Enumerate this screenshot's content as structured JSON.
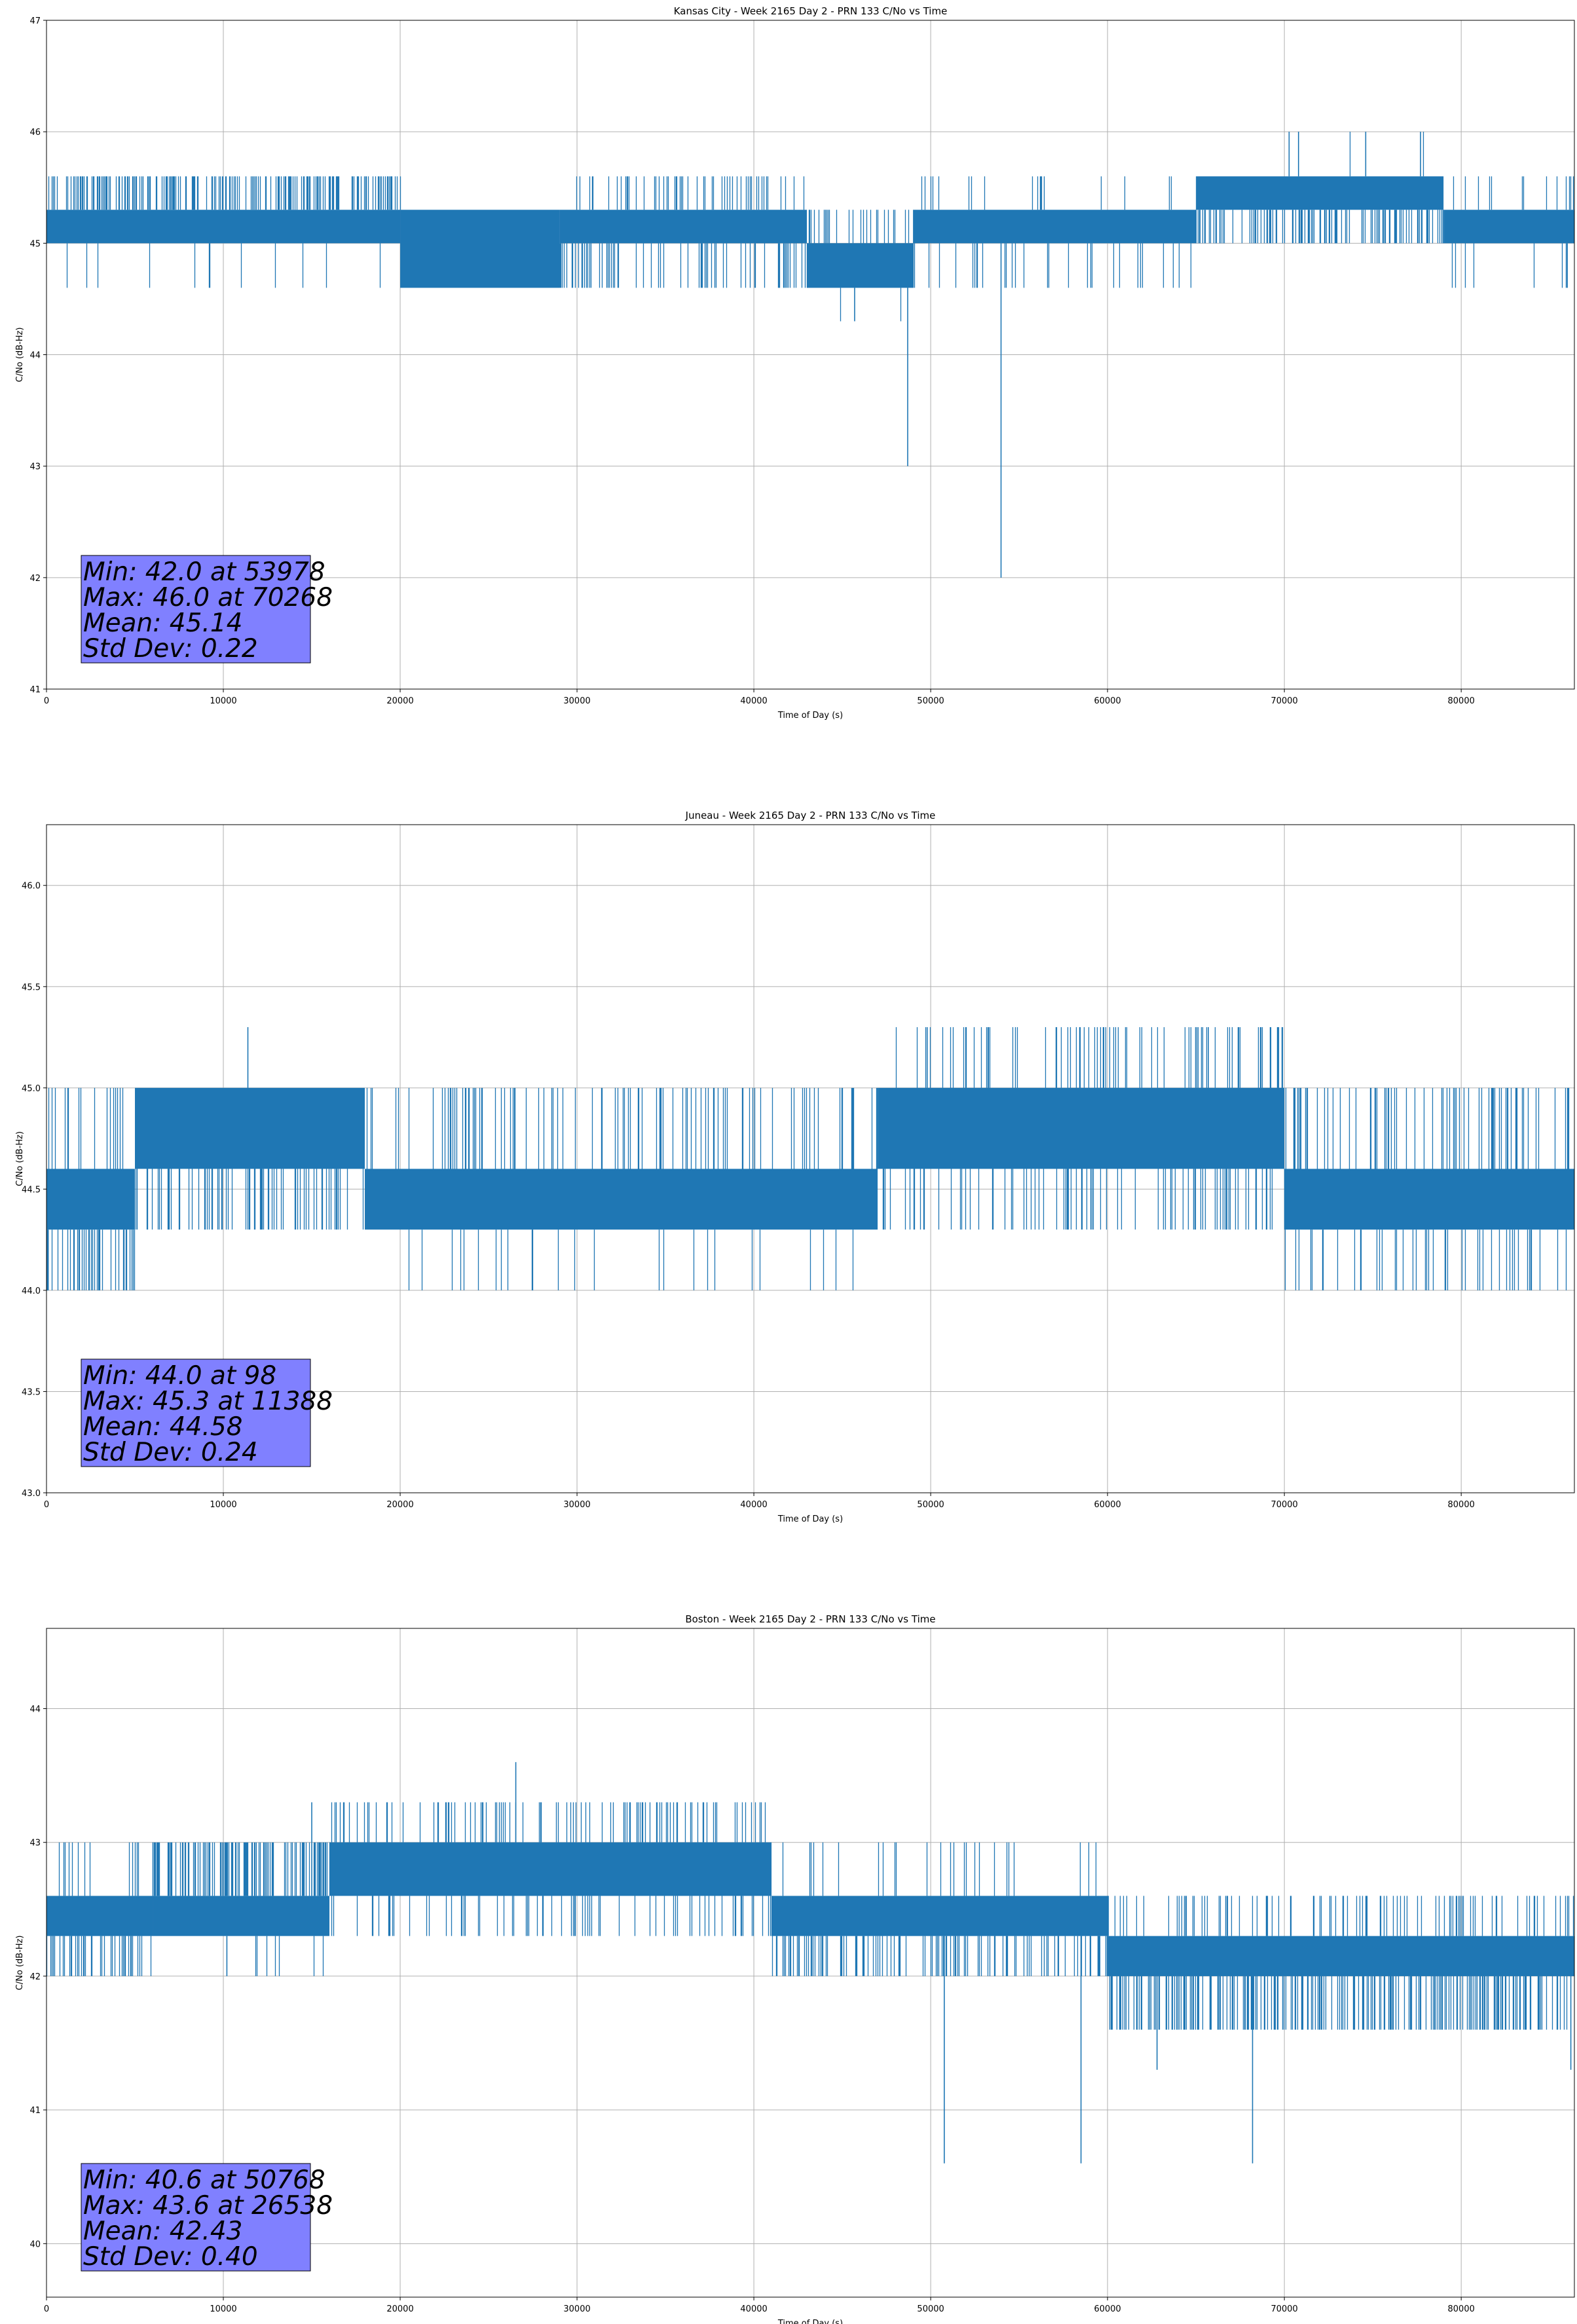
{
  "chart_data": [
    {
      "type": "line",
      "title": "Kansas City - Week 2165 Day 2 - PRN 133 C/No vs Time",
      "xlabel": "Time of Day (s)",
      "ylabel": "C/No (dB-Hz)",
      "xlim": [
        0,
        86400
      ],
      "ylim": [
        41,
        47
      ],
      "xticks": [
        0,
        10000,
        20000,
        30000,
        40000,
        50000,
        60000,
        70000,
        80000
      ],
      "yticks": [
        41,
        42,
        43,
        44,
        45,
        46,
        47
      ],
      "ytick_labels": [
        "41",
        "42",
        "43",
        "44",
        "45",
        "46",
        "47"
      ],
      "grid": true,
      "color": "#1f77b4",
      "series": [
        {
          "segments": [
            {
              "x_start": 0,
              "x_end": 20000,
              "band": [
                45.0,
                45.3
              ],
              "up": 45.6,
              "up_density": 0.35,
              "down": 44.6,
              "down_density": 0.02
            },
            {
              "x_start": 20000,
              "x_end": 29000,
              "band": [
                44.6,
                45.3
              ],
              "up": 45.6,
              "up_density": 0.0,
              "down": 44.6,
              "down_density": 0.1
            },
            {
              "x_start": 29000,
              "x_end": 43000,
              "band": [
                45.0,
                45.3
              ],
              "up": 45.6,
              "up_density": 0.12,
              "down": 44.6,
              "down_density": 0.15
            },
            {
              "x_start": 43000,
              "x_end": 49000,
              "band": [
                44.6,
                45.0
              ],
              "up": 45.3,
              "up_density": 0.2,
              "down": 44.3,
              "down_density": 0.02
            },
            {
              "x_start": 49000,
              "x_end": 65000,
              "band": [
                45.0,
                45.3
              ],
              "up": 45.6,
              "up_density": 0.05,
              "down": 44.6,
              "down_density": 0.06
            },
            {
              "x_start": 65000,
              "x_end": 79000,
              "band": [
                45.3,
                45.6
              ],
              "up": 46.0,
              "up_density": 0.005,
              "down": 45.0,
              "down_density": 0.25
            },
            {
              "x_start": 79000,
              "x_end": 86400,
              "band": [
                45.0,
                45.3
              ],
              "up": 45.6,
              "up_density": 0.05,
              "down": 44.6,
              "down_density": 0.03
            }
          ],
          "spikes": [
            {
              "x": 48700,
              "y": 43.0
            },
            {
              "x": 53978,
              "y": 42.0
            },
            {
              "x": 45700,
              "y": 44.3
            },
            {
              "x": 70268,
              "y": 46.0
            },
            {
              "x": 70800,
              "y": 46.0
            },
            {
              "x": 74600,
              "y": 46.0
            },
            {
              "x": 77700,
              "y": 46.0
            },
            {
              "x": 86000,
              "y": 44.6
            }
          ]
        }
      ],
      "stats": {
        "min_line": "Min: 42.0 at 53978",
        "max_line": "Max: 46.0 at 70268",
        "mean_line": "Mean: 45.14",
        "std_line": "Std Dev: 0.22"
      }
    },
    {
      "type": "line",
      "title": "Juneau - Week 2165 Day 2 - PRN 133 C/No vs Time",
      "xlabel": "Time of Day (s)",
      "ylabel": "C/No (dB-Hz)",
      "xlim": [
        0,
        86400
      ],
      "ylim": [
        43.0,
        46.3
      ],
      "xticks": [
        0,
        10000,
        20000,
        30000,
        40000,
        50000,
        60000,
        70000,
        80000
      ],
      "yticks": [
        43.0,
        43.5,
        44.0,
        44.5,
        45.0,
        45.5,
        46.0
      ],
      "ytick_labels": [
        "43.0",
        "43.5",
        "44.0",
        "44.5",
        "45.0",
        "45.5",
        "46.0"
      ],
      "grid": true,
      "color": "#1f77b4",
      "series": [
        {
          "segments": [
            {
              "x_start": 0,
              "x_end": 5000,
              "band": [
                44.3,
                44.6
              ],
              "up": 45.0,
              "up_density": 0.1,
              "down": 44.0,
              "down_density": 0.3
            },
            {
              "x_start": 5000,
              "x_end": 18000,
              "band": [
                44.6,
                45.0
              ],
              "up": 45.0,
              "up_density": 0.0,
              "down": 44.3,
              "down_density": 0.2
            },
            {
              "x_start": 18000,
              "x_end": 47000,
              "band": [
                44.3,
                44.6
              ],
              "up": 45.0,
              "up_density": 0.12,
              "down": 44.0,
              "down_density": 0.03
            },
            {
              "x_start": 47000,
              "x_end": 70000,
              "band": [
                44.6,
                45.0
              ],
              "up": 45.3,
              "up_density": 0.12,
              "down": 44.3,
              "down_density": 0.15
            },
            {
              "x_start": 70000,
              "x_end": 86400,
              "band": [
                44.3,
                44.6
              ],
              "up": 45.0,
              "up_density": 0.15,
              "down": 44.0,
              "down_density": 0.1
            }
          ],
          "spikes": [
            {
              "x": 98,
              "y": 44.0
            },
            {
              "x": 11388,
              "y": 45.3
            },
            {
              "x": 65700,
              "y": 45.3
            },
            {
              "x": 49800,
              "y": 45.3
            }
          ]
        }
      ],
      "stats": {
        "min_line": "Min: 44.0 at 98",
        "max_line": "Max: 45.3 at 11388",
        "mean_line": "Mean: 44.58",
        "std_line": "Std Dev: 0.24"
      }
    },
    {
      "type": "line",
      "title": "Boston - Week 2165 Day 2 - PRN 133 C/No vs Time",
      "xlabel": "Time of Day (s)",
      "ylabel": "C/No (dB-Hz)",
      "xlim": [
        0,
        86400
      ],
      "ylim": [
        39.6,
        44.6
      ],
      "xticks": [
        0,
        10000,
        20000,
        30000,
        40000,
        50000,
        60000,
        70000,
        80000
      ],
      "yticks": [
        40,
        41,
        42,
        43,
        44
      ],
      "ytick_labels": [
        "40",
        "41",
        "42",
        "43",
        "44"
      ],
      "grid": true,
      "color": "#1f77b4",
      "series": [
        {
          "segments": [
            {
              "x_start": 0,
              "x_end": 6000,
              "band": [
                42.3,
                42.6
              ],
              "up": 43.0,
              "up_density": 0.05,
              "down": 42.0,
              "down_density": 0.25
            },
            {
              "x_start": 6000,
              "x_end": 16000,
              "band": [
                42.3,
                42.6
              ],
              "up": 43.0,
              "up_density": 0.35,
              "down": 42.0,
              "down_density": 0.02
            },
            {
              "x_start": 16000,
              "x_end": 41000,
              "band": [
                42.6,
                43.0
              ],
              "up": 43.3,
              "up_density": 0.15,
              "down": 42.3,
              "down_density": 0.1
            },
            {
              "x_start": 41000,
              "x_end": 60000,
              "band": [
                42.3,
                42.6
              ],
              "up": 43.0,
              "up_density": 0.05,
              "down": 42.0,
              "down_density": 0.2
            },
            {
              "x_start": 60000,
              "x_end": 86400,
              "band": [
                42.0,
                42.3
              ],
              "up": 42.6,
              "up_density": 0.12,
              "down": 41.6,
              "down_density": 0.3
            }
          ],
          "spikes": [
            {
              "x": 26538,
              "y": 43.6
            },
            {
              "x": 50768,
              "y": 40.6
            },
            {
              "x": 58500,
              "y": 40.6
            },
            {
              "x": 68200,
              "y": 40.6
            },
            {
              "x": 10200,
              "y": 42.0
            },
            {
              "x": 15000,
              "y": 43.3
            },
            {
              "x": 62800,
              "y": 41.3
            },
            {
              "x": 86200,
              "y": 41.3
            }
          ]
        }
      ],
      "stats": {
        "min_line": "Min: 40.6 at 50768",
        "max_line": "Max: 43.6 at 26538",
        "mean_line": "Mean: 42.43",
        "std_line": "Std Dev: 0.40"
      }
    }
  ]
}
